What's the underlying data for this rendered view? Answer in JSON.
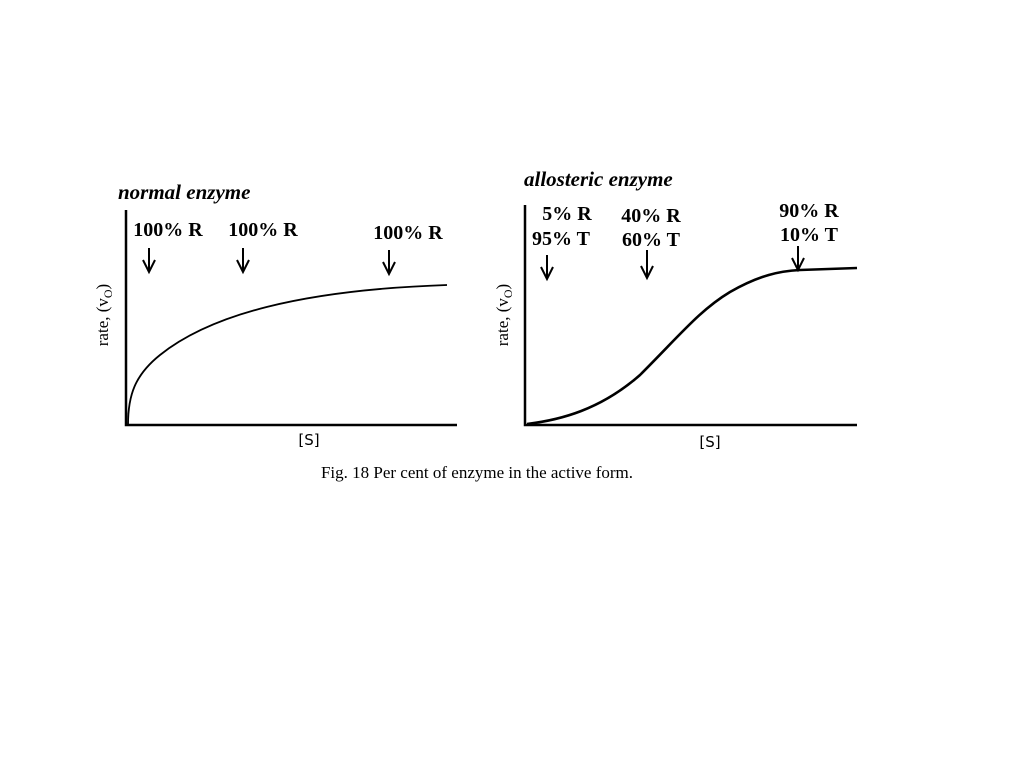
{
  "panels": [
    {
      "title": "normal enzyme",
      "y_label": {
        "text": "rate, (v",
        "subscript": "O",
        "close": ")"
      },
      "x_label": "[S]",
      "annotations": [
        [
          "100% R"
        ],
        [
          "100% R"
        ],
        [
          "100% R"
        ]
      ]
    },
    {
      "title": "allosteric enzyme",
      "y_label": {
        "text": "rate, (v",
        "subscript": "O",
        "close": ")"
      },
      "x_label": "[S]",
      "annotations": [
        [
          "5% R",
          "95% T"
        ],
        [
          "40% R",
          "60% T"
        ],
        [
          "90% R",
          "10% T"
        ]
      ]
    }
  ],
  "caption": "Fig. 18  Per cent of enzyme in the active form."
}
